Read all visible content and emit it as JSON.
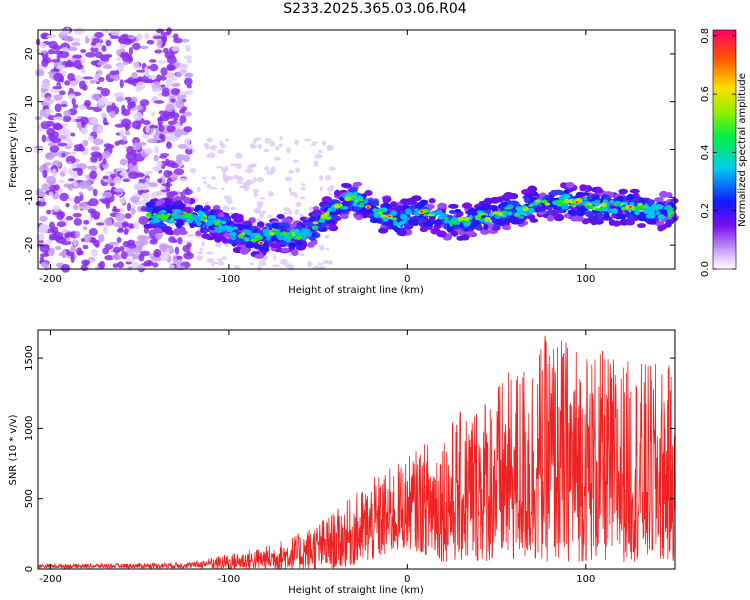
{
  "title": "S233.2025.365.03.06.R04",
  "spectrogram": {
    "xlabel": "Height of straight line (km)",
    "ylabel": "Frequency (Hz)",
    "xlim": [
      -207,
      150
    ],
    "ylim": [
      -25,
      25
    ],
    "xticks": [
      -200,
      -100,
      0,
      100
    ],
    "yticks": [
      -20,
      -10,
      0,
      10,
      20
    ],
    "ridge_points": [
      [
        -143,
        -14
      ],
      [
        -130,
        -14
      ],
      [
        -120,
        -14
      ],
      [
        -110,
        -15
      ],
      [
        -100,
        -17
      ],
      [
        -90,
        -18
      ],
      [
        -82,
        -19
      ],
      [
        -75,
        -17
      ],
      [
        -68,
        -18
      ],
      [
        -60,
        -18
      ],
      [
        -52,
        -16
      ],
      [
        -45,
        -14
      ],
      [
        -38,
        -12
      ],
      [
        -32,
        -10
      ],
      [
        -25,
        -11
      ],
      [
        -18,
        -13
      ],
      [
        -10,
        -14
      ],
      [
        -5,
        -15
      ],
      [
        0,
        -14
      ],
      [
        8,
        -13
      ],
      [
        16,
        -14
      ],
      [
        24,
        -15
      ],
      [
        32,
        -15
      ],
      [
        40,
        -14
      ],
      [
        48,
        -14
      ],
      [
        56,
        -13
      ],
      [
        64,
        -13
      ],
      [
        72,
        -11
      ],
      [
        80,
        -11
      ],
      [
        88,
        -11
      ],
      [
        96,
        -11
      ],
      [
        104,
        -12
      ],
      [
        112,
        -12
      ],
      [
        120,
        -12
      ],
      [
        128,
        -12
      ],
      [
        136,
        -13
      ],
      [
        144,
        -13
      ],
      [
        150,
        -13
      ]
    ],
    "colorbar": {
      "label": "Normalized spectral amplitude",
      "range": [
        0,
        0.82
      ],
      "ticks": [
        "0.0",
        "0.2",
        "0.4",
        "0.6",
        "0.8"
      ]
    }
  },
  "snr_plot": {
    "type": "line",
    "xlabel": "Height of straight line (km)",
    "ylabel": "SNR (10 * v/v)",
    "xlim": [
      -207,
      150
    ],
    "ylim": [
      0,
      1700
    ],
    "xticks": [
      -200,
      -100,
      0,
      100
    ],
    "yticks": [
      0,
      500,
      1000,
      1500
    ],
    "line_color": "#ee2222"
  },
  "chart_data": {
    "type": "line",
    "title": "S233.2025.365.03.06.R04",
    "xlabel": "Height of straight line (km)",
    "ylabel": "SNR (10 * v/v)",
    "xlim": [
      -207,
      150
    ],
    "ylim": [
      0,
      1700
    ],
    "envelope": {
      "x": [
        -207,
        -150,
        -120,
        -100,
        -80,
        -60,
        -40,
        -20,
        0,
        20,
        40,
        60,
        80,
        100,
        120,
        150
      ],
      "min": [
        0,
        0,
        0,
        0,
        0,
        0,
        0,
        50,
        150,
        50,
        50,
        50,
        50,
        50,
        50,
        50
      ],
      "max": [
        35,
        40,
        50,
        110,
        160,
        260,
        420,
        640,
        800,
        1010,
        1240,
        1430,
        1700,
        1600,
        1500,
        1450
      ]
    }
  }
}
